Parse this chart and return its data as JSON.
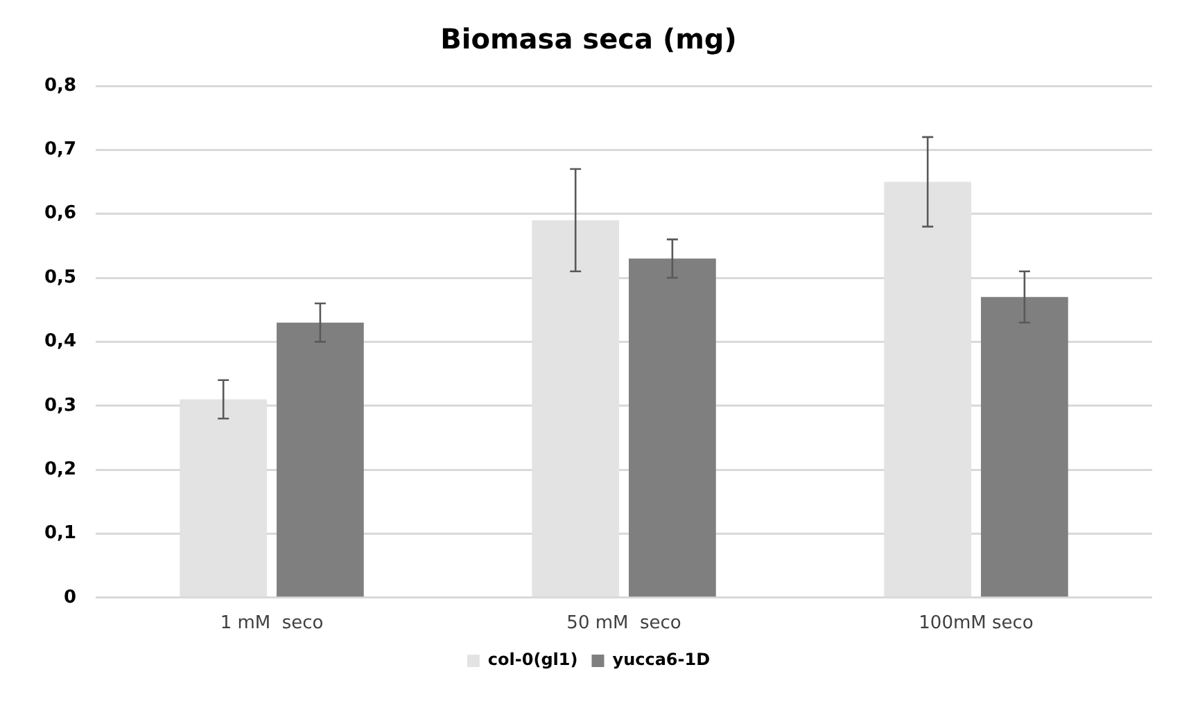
{
  "chart_data": {
    "type": "bar",
    "title": "Biomasa seca (mg)",
    "categories": [
      "1 mM  seco",
      "50 mM  seco",
      "100mM seco"
    ],
    "series": [
      {
        "name": "col-0(gl1)",
        "color": "#e3e3e3",
        "values": [
          0.31,
          0.59,
          0.65
        ],
        "errors": [
          0.03,
          0.08,
          0.07
        ]
      },
      {
        "name": "yucca6-1D",
        "color": "#7f7f7f",
        "values": [
          0.43,
          0.53,
          0.47
        ],
        "errors": [
          0.03,
          0.03,
          0.04
        ]
      }
    ],
    "ylim": [
      0,
      0.8
    ],
    "yticks": [
      0,
      {
        "value": 0.1,
        "label": "0,1"
      },
      {
        "value": 0.2,
        "label": "0,2"
      },
      {
        "value": 0.3,
        "label": "0,3"
      },
      {
        "value": 0.4,
        "label": "0,4"
      },
      {
        "value": 0.5,
        "label": "0,5"
      },
      {
        "value": 0.6,
        "label": "0,6"
      },
      {
        "value": 0.7,
        "label": "0,7"
      },
      {
        "value": 0.8,
        "label": "0,8"
      }
    ],
    "grid": "y",
    "legend": "bottom"
  }
}
